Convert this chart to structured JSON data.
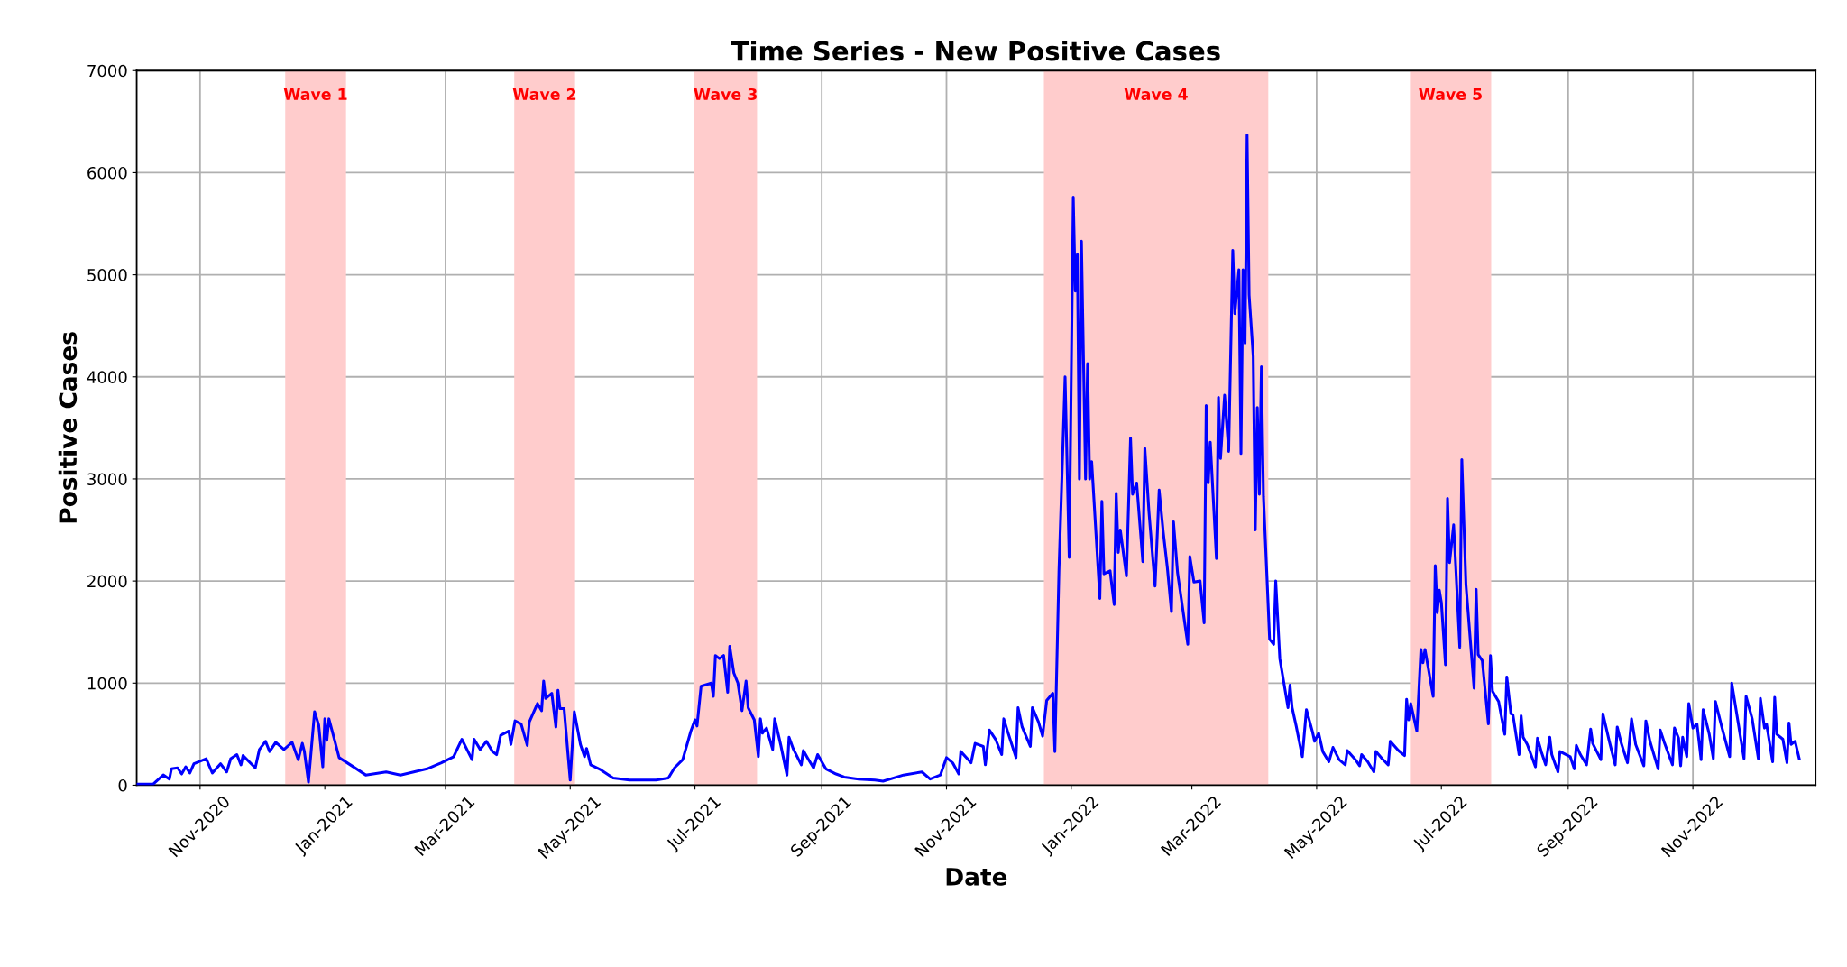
{
  "chart_data": {
    "type": "line",
    "title": "Time Series - New Positive Cases",
    "xlabel": "Date",
    "ylabel": "Positive Cases",
    "xlim": [
      "2020-10-01",
      "2022-12-31"
    ],
    "ylim": [
      0,
      7000
    ],
    "yticks": [
      0,
      1000,
      2000,
      3000,
      4000,
      5000,
      6000,
      7000
    ],
    "xticks": [
      {
        "value": "2020-11-01",
        "label": "Nov-2020"
      },
      {
        "value": "2021-01-01",
        "label": "Jan-2021"
      },
      {
        "value": "2021-03-01",
        "label": "Mar-2021"
      },
      {
        "value": "2021-05-01",
        "label": "May-2021"
      },
      {
        "value": "2021-07-01",
        "label": "Jul-2021"
      },
      {
        "value": "2021-09-01",
        "label": "Sep-2021"
      },
      {
        "value": "2021-11-01",
        "label": "Nov-2021"
      },
      {
        "value": "2022-01-01",
        "label": "Jan-2022"
      },
      {
        "value": "2022-03-01",
        "label": "Mar-2022"
      },
      {
        "value": "2022-05-01",
        "label": "May-2022"
      },
      {
        "value": "2022-07-01",
        "label": "Jul-2022"
      },
      {
        "value": "2022-09-01",
        "label": "Sep-2022"
      },
      {
        "value": "2022-11-01",
        "label": "Nov-2022"
      }
    ],
    "grid": true,
    "marker": "none",
    "line_style": "solid",
    "bands": [
      {
        "axis": "x",
        "from": "2020-12-13",
        "to": "2021-01-11",
        "label": "Wave 1",
        "color": "#ffcccc"
      },
      {
        "axis": "x",
        "from": "2021-04-04",
        "to": "2021-05-03",
        "label": "Wave 2",
        "color": "#ffcccc"
      },
      {
        "axis": "x",
        "from": "2021-07-01",
        "to": "2021-07-31",
        "label": "Wave 3",
        "color": "#ffcccc"
      },
      {
        "axis": "x",
        "from": "2021-12-19",
        "to": "2022-04-07",
        "label": "Wave 4",
        "color": "#ffcccc"
      },
      {
        "axis": "x",
        "from": "2022-06-16",
        "to": "2022-07-25",
        "label": "Wave 5",
        "color": "#ffcccc"
      }
    ],
    "series": [
      {
        "color": "#0000ff",
        "x": [
          "2020-10-01",
          "2020-10-09",
          "2020-10-14",
          "2020-10-17",
          "2020-10-18",
          "2020-10-21",
          "2020-10-23",
          "2020-10-25",
          "2020-10-27",
          "2020-10-29",
          "2020-11-04",
          "2020-11-07",
          "2020-11-11",
          "2020-11-14",
          "2020-11-16",
          "2020-11-19",
          "2020-11-21",
          "2020-11-22",
          "2020-11-28",
          "2020-11-30",
          "2020-12-03",
          "2020-12-05",
          "2020-12-08",
          "2020-12-12",
          "2020-12-16",
          "2020-12-19",
          "2020-12-21",
          "2020-12-22",
          "2020-12-24",
          "2020-12-27",
          "2020-12-29",
          "2020-12-31",
          "2021-01-01",
          "2021-01-02",
          "2021-01-03",
          "2021-01-05",
          "2021-01-08",
          "2021-01-15",
          "2021-01-21",
          "2021-01-31",
          "2021-02-07",
          "2021-02-20",
          "2021-02-27",
          "2021-03-05",
          "2021-03-09",
          "2021-03-14",
          "2021-03-15",
          "2021-03-18",
          "2021-03-21",
          "2021-03-24",
          "2021-03-26",
          "2021-03-28",
          "2021-04-01",
          "2021-04-02",
          "2021-04-04",
          "2021-04-07",
          "2021-04-10",
          "2021-04-11",
          "2021-04-15",
          "2021-04-17",
          "2021-04-18",
          "2021-04-19",
          "2021-04-22",
          "2021-04-24",
          "2021-04-25",
          "2021-04-26",
          "2021-04-28",
          "2021-05-01",
          "2021-05-03",
          "2021-05-06",
          "2021-05-08",
          "2021-05-09",
          "2021-05-11",
          "2021-05-16",
          "2021-05-22",
          "2021-05-30",
          "2021-06-05",
          "2021-06-12",
          "2021-06-18",
          "2021-06-21",
          "2021-06-25",
          "2021-06-29",
          "2021-07-01",
          "2021-07-02",
          "2021-07-04",
          "2021-07-09",
          "2021-07-10",
          "2021-07-11",
          "2021-07-13",
          "2021-07-15",
          "2021-07-17",
          "2021-07-18",
          "2021-07-20",
          "2021-07-22",
          "2021-07-24",
          "2021-07-26",
          "2021-07-27",
          "2021-07-30",
          "2021-08-01",
          "2021-08-02",
          "2021-08-03",
          "2021-08-05",
          "2021-08-08",
          "2021-08-09",
          "2021-08-12",
          "2021-08-15",
          "2021-08-16",
          "2021-08-18",
          "2021-08-22",
          "2021-08-23",
          "2021-08-25",
          "2021-08-28",
          "2021-08-30",
          "2021-09-03",
          "2021-09-08",
          "2021-09-12",
          "2021-09-19",
          "2021-09-27",
          "2021-10-01",
          "2021-10-11",
          "2021-10-20",
          "2021-10-24",
          "2021-10-29",
          "2021-11-01",
          "2021-11-04",
          "2021-11-07",
          "2021-11-08",
          "2021-11-13",
          "2021-11-15",
          "2021-11-19",
          "2021-11-20",
          "2021-11-22",
          "2021-11-25",
          "2021-11-28",
          "2021-11-29",
          "2021-12-01",
          "2021-12-05",
          "2021-12-06",
          "2021-12-08",
          "2021-12-12",
          "2021-12-13",
          "2021-12-16",
          "2021-12-18",
          "2021-12-20",
          "2021-12-23",
          "2021-12-24",
          "2021-12-26",
          "2021-12-29",
          "2021-12-31",
          "2022-01-02",
          "2022-01-03",
          "2022-01-04",
          "2022-01-05",
          "2022-01-06",
          "2022-01-08",
          "2022-01-09",
          "2022-01-10",
          "2022-01-11",
          "2022-01-15",
          "2022-01-16",
          "2022-01-17",
          "2022-01-20",
          "2022-01-22",
          "2022-01-23",
          "2022-01-24",
          "2022-01-25",
          "2022-01-28",
          "2022-01-30",
          "2022-01-31",
          "2022-02-02",
          "2022-02-05",
          "2022-02-06",
          "2022-02-08",
          "2022-02-11",
          "2022-02-13",
          "2022-02-15",
          "2022-02-17",
          "2022-02-19",
          "2022-02-20",
          "2022-02-22",
          "2022-02-27",
          "2022-02-28",
          "2022-03-02",
          "2022-03-05",
          "2022-03-07",
          "2022-03-08",
          "2022-03-09",
          "2022-03-10",
          "2022-03-13",
          "2022-03-14",
          "2022-03-15",
          "2022-03-17",
          "2022-03-19",
          "2022-03-21",
          "2022-03-22",
          "2022-03-24",
          "2022-03-25",
          "2022-03-26",
          "2022-03-27",
          "2022-03-28",
          "2022-03-29",
          "2022-03-31",
          "2022-04-01",
          "2022-04-02",
          "2022-04-03",
          "2022-04-04",
          "2022-04-05",
          "2022-04-07",
          "2022-04-08",
          "2022-04-10",
          "2022-04-11",
          "2022-04-13",
          "2022-04-15",
          "2022-04-17",
          "2022-04-18",
          "2022-04-19",
          "2022-04-21",
          "2022-04-24",
          "2022-04-26",
          "2022-04-29",
          "2022-04-30",
          "2022-05-02",
          "2022-05-04",
          "2022-05-07",
          "2022-05-09",
          "2022-05-12",
          "2022-05-15",
          "2022-05-16",
          "2022-05-20",
          "2022-05-22",
          "2022-05-23",
          "2022-05-26",
          "2022-05-29",
          "2022-05-30",
          "2022-06-02",
          "2022-06-05",
          "2022-06-06",
          "2022-06-10",
          "2022-06-13",
          "2022-06-14",
          "2022-06-15",
          "2022-06-16",
          "2022-06-19",
          "2022-06-21",
          "2022-06-22",
          "2022-06-23",
          "2022-06-27",
          "2022-06-28",
          "2022-06-29",
          "2022-06-30",
          "2022-07-01",
          "2022-07-03",
          "2022-07-04",
          "2022-07-05",
          "2022-07-07",
          "2022-07-10",
          "2022-07-11",
          "2022-07-13",
          "2022-07-17",
          "2022-07-18",
          "2022-07-19",
          "2022-07-21",
          "2022-07-24",
          "2022-07-25",
          "2022-07-26",
          "2022-07-29",
          "2022-08-01",
          "2022-08-02",
          "2022-08-04",
          "2022-08-05",
          "2022-08-08",
          "2022-08-09",
          "2022-08-10",
          "2022-08-12",
          "2022-08-16",
          "2022-08-17",
          "2022-08-19",
          "2022-08-21",
          "2022-08-23",
          "2022-08-24",
          "2022-08-27",
          "2022-08-28",
          "2022-09-02",
          "2022-09-04",
          "2022-09-05",
          "2022-09-07",
          "2022-09-10",
          "2022-09-12",
          "2022-09-13",
          "2022-09-17",
          "2022-09-18",
          "2022-09-21",
          "2022-09-24",
          "2022-09-25",
          "2022-09-27",
          "2022-09-30",
          "2022-10-02",
          "2022-10-04",
          "2022-10-08",
          "2022-10-09",
          "2022-10-11",
          "2022-10-15",
          "2022-10-16",
          "2022-10-18",
          "2022-10-22",
          "2022-10-23",
          "2022-10-25",
          "2022-10-26",
          "2022-10-27",
          "2022-10-29",
          "2022-10-30",
          "2022-11-01",
          "2022-11-03",
          "2022-11-05",
          "2022-11-06",
          "2022-11-09",
          "2022-11-11",
          "2022-11-12",
          "2022-11-15",
          "2022-11-19",
          "2022-11-20",
          "2022-11-23",
          "2022-11-26",
          "2022-11-27",
          "2022-11-30",
          "2022-12-03",
          "2022-12-04",
          "2022-12-06",
          "2022-12-07",
          "2022-12-10",
          "2022-12-11",
          "2022-12-12",
          "2022-12-15",
          "2022-12-17",
          "2022-12-18",
          "2022-12-19",
          "2022-12-21",
          "2022-12-23"
        ],
        "values": [
          10,
          10,
          100,
          60,
          160,
          170,
          110,
          180,
          120,
          210,
          260,
          120,
          210,
          130,
          260,
          300,
          200,
          290,
          170,
          350,
          430,
          330,
          420,
          350,
          420,
          250,
          410,
          330,
          30,
          720,
          590,
          180,
          650,
          440,
          650,
          500,
          270,
          180,
          100,
          130,
          100,
          160,
          220,
          280,
          450,
          250,
          450,
          350,
          430,
          330,
          300,
          490,
          530,
          400,
          630,
          600,
          390,
          620,
          800,
          730,
          1020,
          850,
          900,
          570,
          930,
          750,
          750,
          50,
          720,
          400,
          280,
          360,
          200,
          150,
          70,
          50,
          50,
          50,
          70,
          170,
          250,
          530,
          640,
          580,
          970,
          1000,
          870,
          1270,
          1240,
          1270,
          910,
          1360,
          1100,
          1000,
          730,
          1020,
          760,
          640,
          280,
          650,
          510,
          560,
          350,
          650,
          390,
          100,
          470,
          360,
          200,
          340,
          270,
          170,
          300,
          160,
          110,
          80,
          60,
          50,
          40,
          100,
          130,
          60,
          100,
          270,
          220,
          110,
          330,
          220,
          410,
          380,
          200,
          540,
          450,
          300,
          650,
          520,
          270,
          760,
          570,
          380,
          760,
          620,
          480,
          830,
          900,
          330,
          2100,
          4000,
          2230,
          5760,
          4840,
          5200,
          3000,
          5330,
          3000,
          4130,
          3000,
          3170,
          1830,
          2780,
          2070,
          2100,
          1770,
          2860,
          2280,
          2500,
          2050,
          3400,
          2850,
          2960,
          2190,
          3300,
          2680,
          1950,
          2890,
          2480,
          2130,
          1700,
          2580,
          2080,
          1380,
          2240,
          1990,
          2000,
          1590,
          3720,
          2960,
          3360,
          2220,
          3800,
          3200,
          3820,
          3270,
          5240,
          4620,
          5050,
          3250,
          5050,
          4330,
          6370,
          4800,
          4200,
          2500,
          3700,
          2850,
          4100,
          2830,
          1900,
          1430,
          1380,
          2000,
          1240,
          1000,
          760,
          980,
          760,
          580,
          280,
          740,
          520,
          430,
          510,
          330,
          230,
          370,
          250,
          200,
          340,
          250,
          190,
          300,
          230,
          130,
          330,
          260,
          200,
          430,
          340,
          290,
          840,
          640,
          800,
          530,
          1330,
          1200,
          1330,
          870,
          2150,
          1690,
          1910,
          1790,
          1180,
          2810,
          2180,
          2550,
          1350,
          3190,
          1970,
          950,
          1920,
          1280,
          1220,
          600,
          1270,
          920,
          820,
          500,
          1060,
          700,
          690,
          300,
          680,
          470,
          400,
          180,
          460,
          320,
          200,
          470,
          300,
          130,
          330,
          280,
          160,
          390,
          300,
          200,
          550,
          410,
          250,
          700,
          440,
          200,
          570,
          410,
          220,
          650,
          400,
          190,
          630,
          430,
          160,
          540,
          420,
          200,
          560,
          460,
          190,
          470,
          280,
          800,
          560,
          600,
          250,
          740,
          500,
          260,
          820,
          580,
          280,
          1000,
          630,
          260,
          870,
          650,
          260,
          850,
          560,
          600,
          230,
          860,
          500,
          450,
          220,
          610,
          400,
          430,
          260
        ]
      }
    ]
  }
}
